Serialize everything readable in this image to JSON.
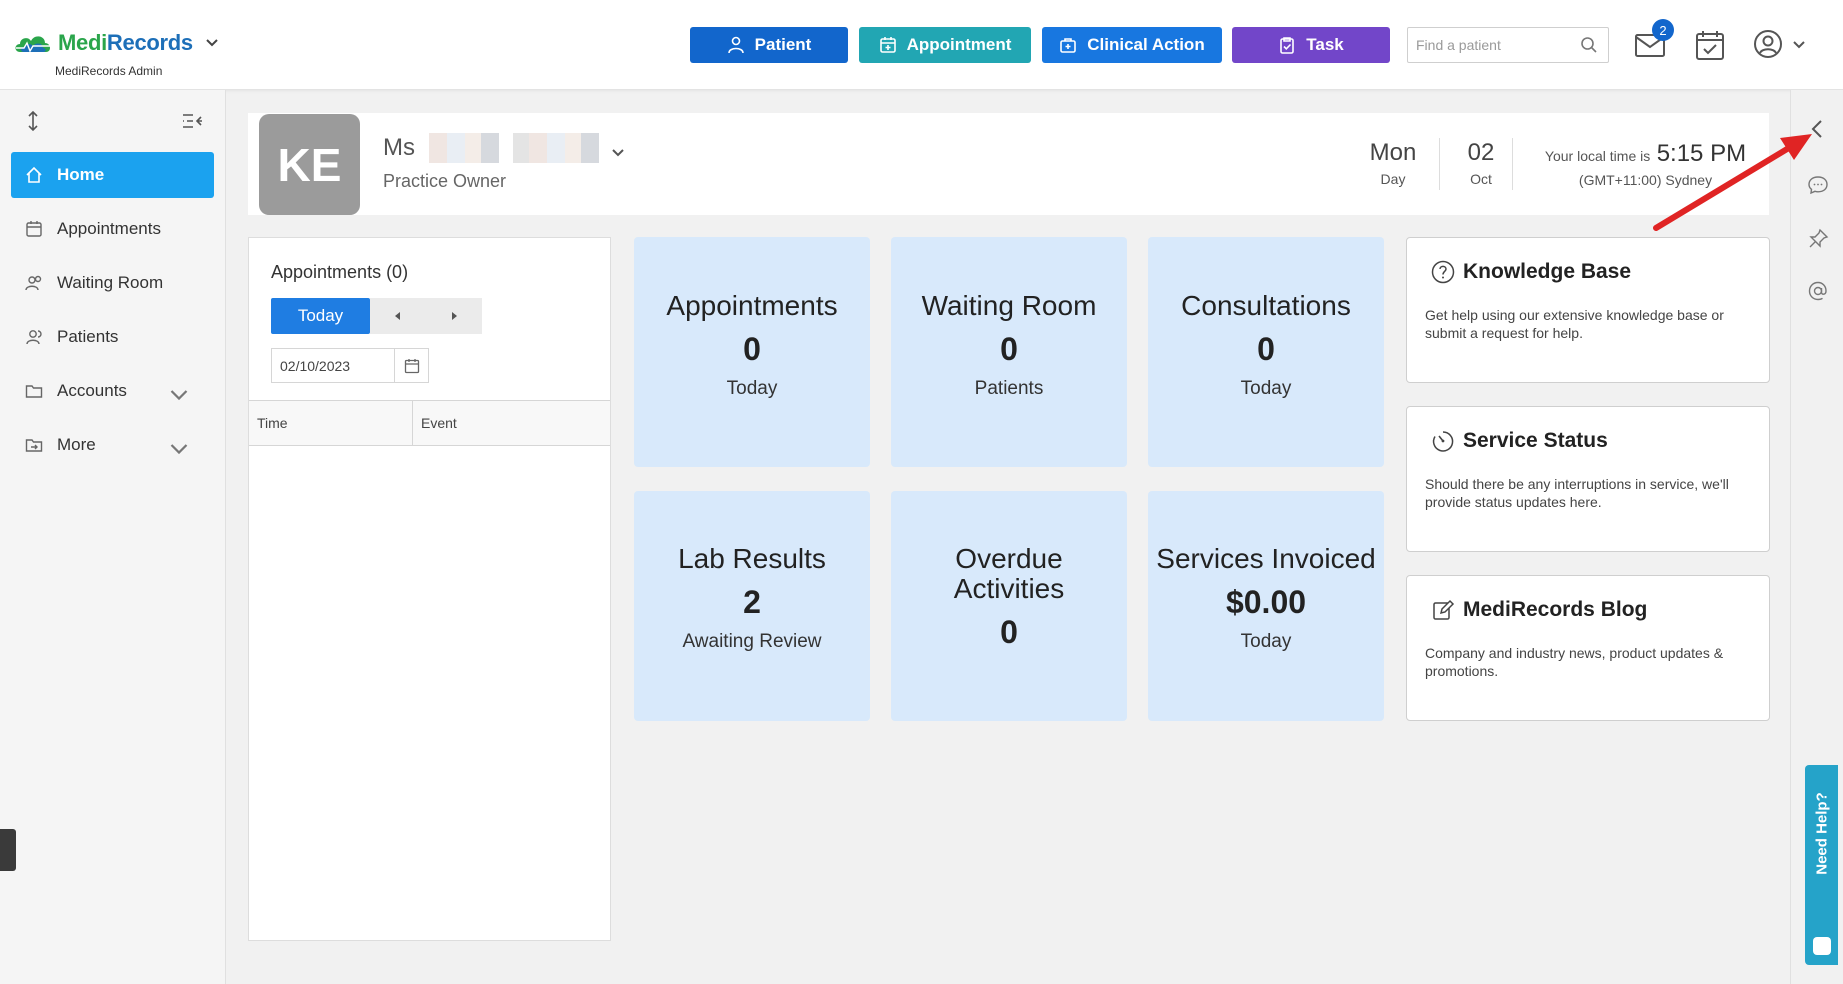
{
  "header": {
    "logo_medi": "Medi",
    "logo_records": "Records",
    "logo_sub": "MediRecords Admin",
    "buttons": {
      "patient": "Patient",
      "appointment": "Appointment",
      "clinical_action": "Clinical Action",
      "task": "Task"
    },
    "search_placeholder": "Find a patient",
    "mail_badge": "2"
  },
  "sidebar": {
    "items": [
      {
        "label": "Home",
        "icon": "home-icon",
        "active": true
      },
      {
        "label": "Appointments",
        "icon": "calendar-icon"
      },
      {
        "label": "Waiting Room",
        "icon": "users-icon"
      },
      {
        "label": "Patients",
        "icon": "patients-icon"
      },
      {
        "label": "Accounts",
        "icon": "folder-icon"
      },
      {
        "label": "More",
        "icon": "external-icon"
      }
    ]
  },
  "profile": {
    "initials": "KE",
    "salutation": "Ms",
    "role": "Practice Owner",
    "day_name": "Mon",
    "day_label": "Day",
    "date_num": "02",
    "month": "Oct",
    "time_label": "Your local time is",
    "time": "5:15 PM",
    "timezone": "(GMT+11:00) Sydney"
  },
  "appointments_panel": {
    "title": "Appointments (0)",
    "today_label": "Today",
    "date_value": "02/10/2023",
    "columns": [
      "Time",
      "Event"
    ]
  },
  "tiles": [
    {
      "title": "Appointments",
      "value": "0",
      "sub": "Today"
    },
    {
      "title": "Waiting Room",
      "value": "0",
      "sub": "Patients"
    },
    {
      "title": "Consultations",
      "value": "0",
      "sub": "Today"
    },
    {
      "title": "Lab Results",
      "value": "2",
      "sub": "Awaiting Review"
    },
    {
      "title": "Overdue Activities",
      "value": "0",
      "sub": ""
    },
    {
      "title": "Services Invoiced",
      "value": "$0.00",
      "sub": "Today"
    }
  ],
  "cards": [
    {
      "title": "Knowledge Base",
      "body": "Get help using our extensive knowledge base or submit a request for help."
    },
    {
      "title": "Service Status",
      "body": "Should there be any interruptions in service, we'll provide status updates here."
    },
    {
      "title": "MediRecords Blog",
      "body": "Company and industry news, product updates & promotions."
    }
  ],
  "help_tab": "Need Help?",
  "colors": {
    "patient_btn": "#1266cc",
    "appointment_btn": "#22a6b3",
    "clinical_btn": "#1877e0",
    "task_btn": "#7246c9",
    "sidebar_active": "#1ba2ef",
    "tile_bg": "#d8e9fb",
    "annotation_arrow": "#e02424"
  }
}
